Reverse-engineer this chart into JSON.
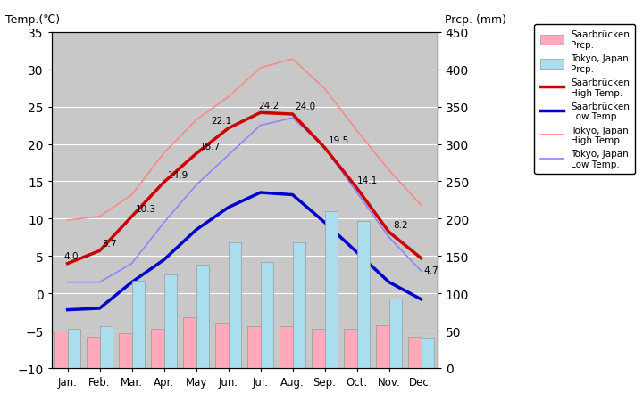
{
  "months": [
    "Jan.",
    "Feb.",
    "Mar.",
    "Apr.",
    "May",
    "Jun.",
    "Jul.",
    "Aug.",
    "Sep.",
    "Oct.",
    "Nov.",
    "Dec."
  ],
  "saar_high": [
    4.0,
    5.7,
    10.3,
    14.9,
    18.7,
    22.1,
    24.2,
    24.0,
    19.5,
    14.1,
    8.2,
    4.7
  ],
  "saar_low": [
    -2.2,
    -2.0,
    1.5,
    4.5,
    8.5,
    11.5,
    13.5,
    13.2,
    9.5,
    5.5,
    1.5,
    -0.8
  ],
  "tokyo_high": [
    9.8,
    10.3,
    13.2,
    18.8,
    23.2,
    26.3,
    30.2,
    31.4,
    27.4,
    21.8,
    16.5,
    11.8
  ],
  "tokyo_low": [
    1.5,
    1.5,
    4.0,
    9.5,
    14.5,
    18.5,
    22.5,
    23.5,
    19.5,
    13.5,
    7.5,
    3.0
  ],
  "saar_prcp_bar": [
    50,
    42,
    46,
    52,
    68,
    60,
    56,
    56,
    52,
    52,
    57,
    42
  ],
  "tokyo_prcp_bar": [
    52,
    56,
    117,
    125,
    138,
    168,
    142,
    168,
    210,
    197,
    93,
    40
  ],
  "temp_ylim": [
    -10,
    35
  ],
  "prcp_ylim": [
    0,
    450
  ],
  "bg_color": "#c8c8c8",
  "saar_high_color": "#cc0000",
  "saar_low_color": "#0000cc",
  "tokyo_high_color": "#ff8888",
  "tokyo_low_color": "#8888ff",
  "saar_prcp_color": "#ffaabb",
  "tokyo_prcp_color": "#aaddee",
  "title_left": "Temp.(℃)",
  "title_right": "Prcp. (mm)",
  "temp_ticks": [
    -10,
    -5,
    0,
    5,
    10,
    15,
    20,
    25,
    30,
    35
  ],
  "prcp_ticks": [
    0,
    50,
    100,
    150,
    200,
    250,
    300,
    350,
    400,
    450
  ]
}
